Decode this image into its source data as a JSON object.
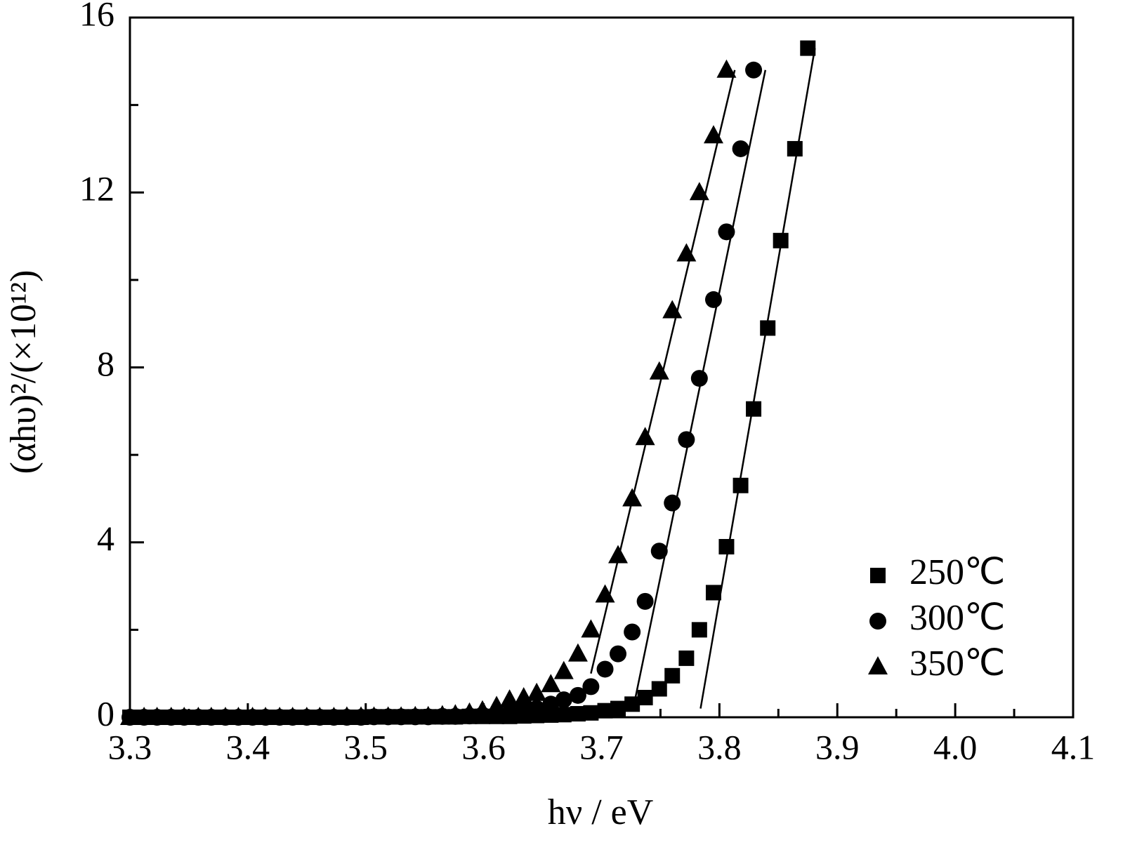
{
  "chart_data": {
    "type": "scatter",
    "x_label": "hν / eV",
    "y_label": "(αhυ)²/(×10¹²)",
    "x": [
      3.3,
      3.312,
      3.323,
      3.335,
      3.346,
      3.358,
      3.369,
      3.381,
      3.392,
      3.404,
      3.415,
      3.427,
      3.438,
      3.45,
      3.461,
      3.473,
      3.484,
      3.496,
      3.507,
      3.519,
      3.53,
      3.542,
      3.553,
      3.565,
      3.576,
      3.588,
      3.599,
      3.611,
      3.622,
      3.634,
      3.645,
      3.657,
      3.668,
      3.68,
      3.691,
      3.703,
      3.714,
      3.726,
      3.737,
      3.749,
      3.76,
      3.772,
      3.783,
      3.795,
      3.806,
      3.818,
      3.829,
      3.841,
      3.852,
      3.864,
      3.875
    ],
    "series": [
      {
        "name": "250℃",
        "color": "#000000",
        "marker": "square",
        "values": [
          0,
          0,
          0,
          0,
          0,
          0,
          0,
          0,
          0,
          0,
          0,
          0,
          0,
          0,
          0,
          0,
          0,
          0,
          0.01,
          0.01,
          0.01,
          0.01,
          0.01,
          0.01,
          0.01,
          0.02,
          0.02,
          0.02,
          0.02,
          0.03,
          0.04,
          0.05,
          0.06,
          0.08,
          0.1,
          0.15,
          0.2,
          0.3,
          0.45,
          0.65,
          0.95,
          1.35,
          2.0,
          2.85,
          3.9,
          5.3,
          7.05,
          8.9,
          10.9,
          13.0,
          15.3
        ],
        "fit": {
          "x": [
            3.784,
            3.881
          ],
          "y": [
            0.2,
            15.3
          ]
        }
      },
      {
        "name": "300℃",
        "color": "#000000",
        "marker": "circle",
        "values": [
          0,
          0,
          0,
          0,
          0,
          0,
          0,
          0,
          0,
          0,
          0,
          0,
          0,
          0,
          0,
          0,
          0,
          0,
          0.01,
          0.01,
          0.01,
          0.01,
          0.01,
          0.02,
          0.02,
          0.03,
          0.05,
          0.08,
          0.1,
          0.15,
          0.2,
          0.3,
          0.4,
          0.5,
          0.7,
          1.1,
          1.45,
          1.95,
          2.65,
          3.8,
          4.9,
          6.35,
          7.75,
          9.55,
          11.1,
          13.0,
          14.8,
          null,
          null,
          null,
          null
        ],
        "fit": {
          "x": [
            3.728,
            3.839
          ],
          "y": [
            0.35,
            14.8
          ]
        }
      },
      {
        "name": "350℃",
        "color": "#000000",
        "marker": "triangle",
        "values": [
          0,
          0,
          0,
          0,
          0,
          0,
          0,
          0,
          0,
          0,
          0,
          0,
          0,
          0,
          0,
          0,
          0.01,
          0.01,
          0.01,
          0.01,
          0.01,
          0.02,
          0.02,
          0.04,
          0.06,
          0.1,
          0.15,
          0.25,
          0.4,
          0.45,
          0.55,
          0.75,
          1.05,
          1.45,
          2.0,
          2.8,
          3.7,
          5.0,
          6.4,
          7.9,
          9.3,
          10.6,
          12.0,
          13.3,
          14.8,
          null,
          null,
          null,
          null,
          null,
          null
        ],
        "fit": {
          "x": [
            3.691,
            3.813
          ],
          "y": [
            1.0,
            14.8
          ]
        }
      }
    ],
    "xlim": [
      3.3,
      4.1
    ],
    "xticks": [
      3.3,
      3.4,
      3.5,
      3.6,
      3.7,
      3.8,
      3.9,
      {
        "value": 4,
        "label": "4.0"
      },
      4.1
    ],
    "xticks_minor": [
      3.35,
      3.45,
      3.55,
      3.65,
      3.75,
      3.85,
      3.95,
      4.05
    ],
    "ylim": [
      0,
      16
    ],
    "yticks": [
      0,
      4,
      8,
      12,
      16
    ],
    "yticks_minor": [
      2,
      6,
      10,
      14
    ],
    "grid": false,
    "legend": "lower right"
  }
}
